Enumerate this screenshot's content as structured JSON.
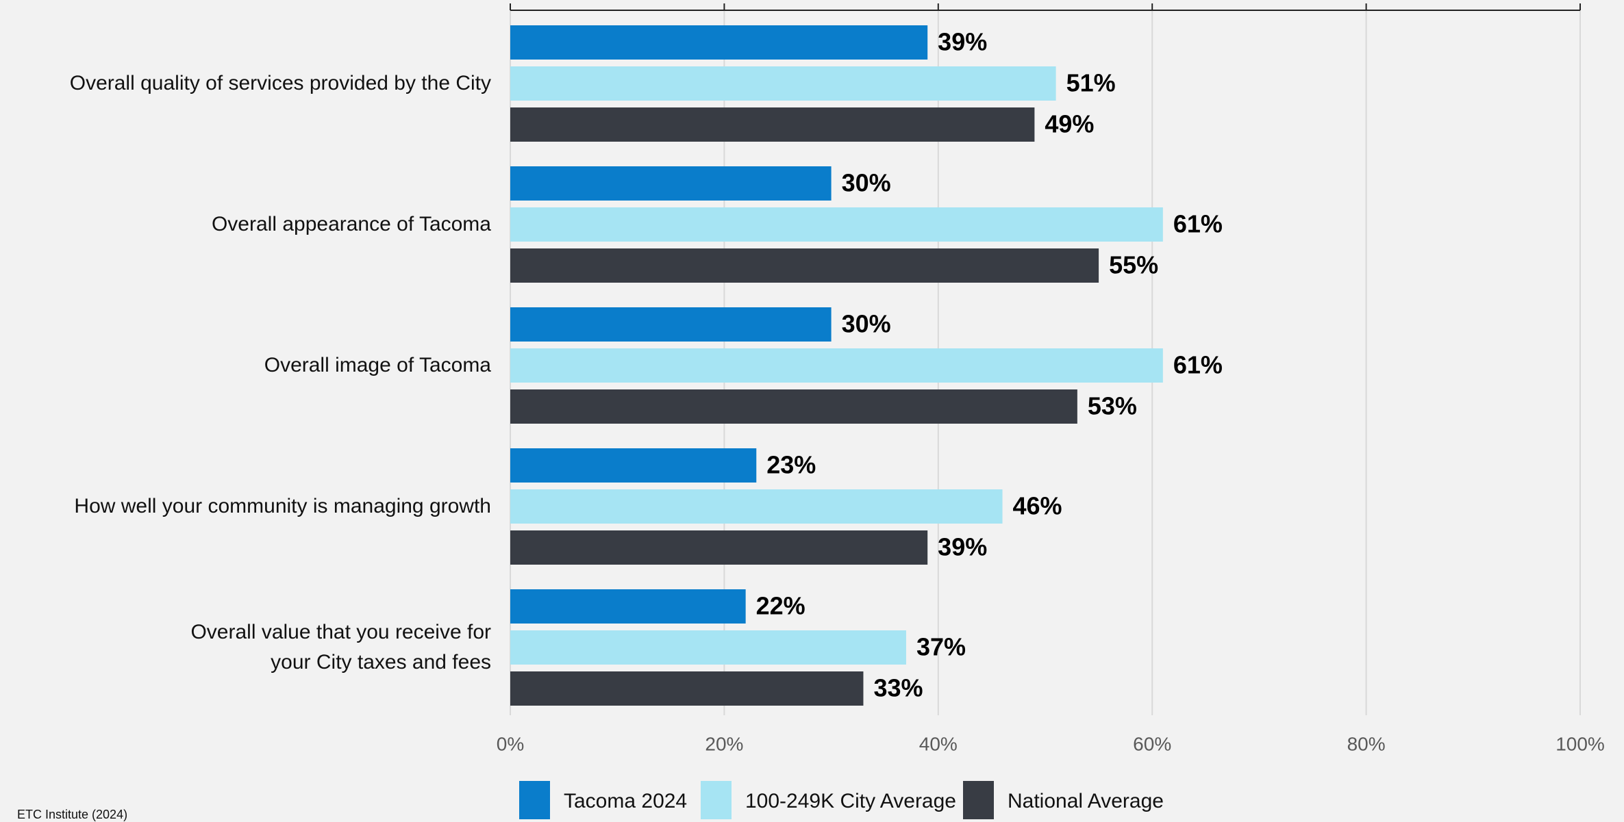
{
  "chart_data": {
    "type": "hbar",
    "categories": [
      "Overall quality of services provided by the City",
      "Overall appearance of Tacoma",
      "Overall image of Tacoma",
      "How well your community is managing growth",
      "Overall value that you receive for\nyour City taxes and fees"
    ],
    "series": [
      {
        "name": "Tacoma 2024",
        "color": "#0a7dcb",
        "values": [
          39,
          30,
          30,
          23,
          22
        ],
        "value_labels": [
          "39%",
          "30%",
          "30%",
          "23%",
          "22%"
        ]
      },
      {
        "name": "100-249K City Average",
        "color": "#a6e4f3",
        "values": [
          51,
          61,
          61,
          46,
          37
        ],
        "value_labels": [
          "51%",
          "61%",
          "61%",
          "46%",
          "37%"
        ]
      },
      {
        "name": "National Average",
        "color": "#383c44",
        "values": [
          49,
          55,
          53,
          39,
          33
        ],
        "value_labels": [
          "49%",
          "55%",
          "53%",
          "39%",
          "33%"
        ]
      }
    ],
    "xlim": [
      0,
      100
    ],
    "xticks": [
      {
        "value": 0,
        "label": "0%"
      },
      {
        "value": 20,
        "label": "20%"
      },
      {
        "value": 40,
        "label": "40%"
      },
      {
        "value": 60,
        "label": "60%"
      },
      {
        "value": 80,
        "label": "80%"
      },
      {
        "value": 100,
        "label": "100%"
      }
    ],
    "grid": true,
    "legend": "bottom",
    "source": "ETC Institute (2024)"
  }
}
